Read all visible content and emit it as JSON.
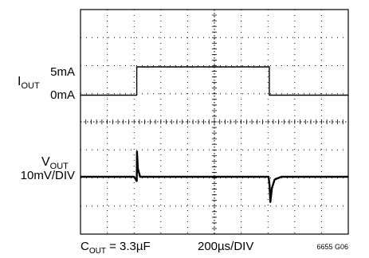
{
  "labels": {
    "iout_name": "I",
    "iout_sub": "OUT",
    "iout_high": "5mA",
    "iout_low": "0mA",
    "vout_name": "V",
    "vout_sub": "OUT",
    "vout_scale": "10mV/DIV",
    "cout_name": "C",
    "cout_sub": "OUT",
    "cout_value": " = 3.3µF",
    "timebase": "200µs/DIV",
    "figure_id": "6655 G06"
  },
  "chart_data": {
    "type": "line",
    "title": "",
    "xlabel": "200µs/DIV",
    "grid": {
      "x_divisions": 10,
      "y_divisions": 8,
      "x_units": "µs",
      "x_per_div": 200
    },
    "xlim": [
      0,
      2000
    ],
    "series": [
      {
        "name": "IOUT",
        "unit": "mA",
        "points": [
          [
            0,
            0
          ],
          [
            420,
            0
          ],
          [
            420,
            5
          ],
          [
            1410,
            5
          ],
          [
            1410,
            0
          ],
          [
            2000,
            0
          ]
        ]
      },
      {
        "name": "VOUT",
        "unit": "mV",
        "points": [
          [
            0,
            0
          ],
          [
            400,
            0
          ],
          [
            420,
            -1.5
          ],
          [
            422,
            9
          ],
          [
            428,
            3
          ],
          [
            445,
            0
          ],
          [
            1405,
            0
          ],
          [
            1412,
            -3
          ],
          [
            1418,
            -9
          ],
          [
            1430,
            -4
          ],
          [
            1450,
            -1
          ],
          [
            1500,
            0
          ],
          [
            2000,
            0
          ]
        ]
      }
    ]
  }
}
